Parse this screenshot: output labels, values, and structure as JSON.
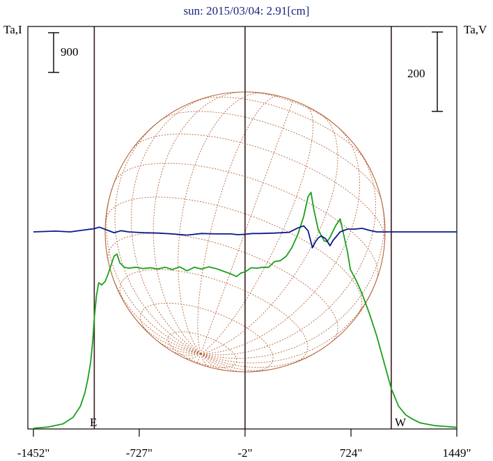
{
  "chart_data": {
    "type": "line",
    "title": "sun: 2015/03/04: 2.91[cm]",
    "left_axis_label": "Ta,I",
    "right_axis_label": "Ta,V",
    "left_scale_label": "900",
    "right_scale_label": "200",
    "limb_labels": {
      "east": "E",
      "west": "W"
    },
    "xlim": [
      -1452,
      1449
    ],
    "x_ticks": [
      {
        "value": -1452,
        "label": "-1452\""
      },
      {
        "value": -727,
        "label": "-727\""
      },
      {
        "value": -2,
        "label": "-2\""
      },
      {
        "value": 724,
        "label": "724\""
      },
      {
        "value": 1449,
        "label": "1449\""
      }
    ],
    "vertical_lines_x": [
      -1035,
      -2,
      1000
    ],
    "colors": {
      "title": "#1a237e",
      "stokes_i": "#1a9f1a",
      "stokes_v": "#0a1a8a",
      "disk": "#b5653a",
      "marker_lines": "#3a1a1a",
      "axes": "#000000"
    },
    "series": [
      {
        "name": "",
        "axis": "left",
        "color": "#1a9f1a",
        "points": [
          [
            -1452,
            0
          ],
          [
            -1350,
            30
          ],
          [
            -1250,
            100
          ],
          [
            -1180,
            250
          ],
          [
            -1130,
            500
          ],
          [
            -1100,
            800
          ],
          [
            -1080,
            1100
          ],
          [
            -1060,
            1500
          ],
          [
            -1045,
            2000
          ],
          [
            -1035,
            2500
          ],
          [
            -1020,
            3000
          ],
          [
            -1005,
            3300
          ],
          [
            -985,
            3250
          ],
          [
            -960,
            3330
          ],
          [
            -940,
            3500
          ],
          [
            -920,
            3700
          ],
          [
            -900,
            3900
          ],
          [
            -880,
            3950
          ],
          [
            -860,
            3750
          ],
          [
            -830,
            3650
          ],
          [
            -800,
            3630
          ],
          [
            -750,
            3650
          ],
          [
            -700,
            3620
          ],
          [
            -650,
            3640
          ],
          [
            -600,
            3610
          ],
          [
            -550,
            3650
          ],
          [
            -500,
            3600
          ],
          [
            -450,
            3660
          ],
          [
            -400,
            3570
          ],
          [
            -350,
            3650
          ],
          [
            -300,
            3610
          ],
          [
            -250,
            3660
          ],
          [
            -200,
            3620
          ],
          [
            -150,
            3560
          ],
          [
            -100,
            3500
          ],
          [
            -60,
            3440
          ],
          [
            -30,
            3520
          ],
          [
            0,
            3550
          ],
          [
            40,
            3640
          ],
          [
            80,
            3630
          ],
          [
            120,
            3650
          ],
          [
            160,
            3650
          ],
          [
            200,
            3780
          ],
          [
            240,
            3800
          ],
          [
            280,
            3900
          ],
          [
            320,
            4100
          ],
          [
            360,
            4400
          ],
          [
            400,
            4800
          ],
          [
            430,
            5250
          ],
          [
            450,
            5350
          ],
          [
            470,
            4950
          ],
          [
            500,
            4500
          ],
          [
            540,
            4250
          ],
          [
            560,
            4230
          ],
          [
            580,
            4330
          ],
          [
            620,
            4600
          ],
          [
            650,
            4750
          ],
          [
            680,
            4300
          ],
          [
            700,
            4000
          ],
          [
            720,
            3600
          ],
          [
            760,
            3350
          ],
          [
            800,
            3050
          ],
          [
            850,
            2600
          ],
          [
            900,
            2100
          ],
          [
            950,
            1500
          ],
          [
            1000,
            900
          ],
          [
            1050,
            500
          ],
          [
            1100,
            300
          ],
          [
            1150,
            200
          ],
          [
            1200,
            120
          ],
          [
            1300,
            60
          ],
          [
            1449,
            20
          ]
        ]
      },
      {
        "name": "",
        "axis": "right",
        "color": "#0a1a8a",
        "points": [
          [
            -1452,
            0
          ],
          [
            -1300,
            2
          ],
          [
            -1200,
            0
          ],
          [
            -1100,
            5
          ],
          [
            -1035,
            8
          ],
          [
            -1000,
            12
          ],
          [
            -950,
            5
          ],
          [
            -900,
            -2
          ],
          [
            -850,
            3
          ],
          [
            -800,
            0
          ],
          [
            -700,
            -2
          ],
          [
            -600,
            -3
          ],
          [
            -500,
            -5
          ],
          [
            -400,
            -8
          ],
          [
            -300,
            -4
          ],
          [
            -200,
            -5
          ],
          [
            -100,
            -5
          ],
          [
            -50,
            -7
          ],
          [
            0,
            -6
          ],
          [
            50,
            -4
          ],
          [
            100,
            -4
          ],
          [
            200,
            -3
          ],
          [
            300,
            -1
          ],
          [
            360,
            10
          ],
          [
            400,
            15
          ],
          [
            430,
            3
          ],
          [
            460,
            -40
          ],
          [
            480,
            -25
          ],
          [
            500,
            -15
          ],
          [
            520,
            -10
          ],
          [
            550,
            -17
          ],
          [
            580,
            -35
          ],
          [
            600,
            -22
          ],
          [
            650,
            0
          ],
          [
            700,
            7
          ],
          [
            750,
            7
          ],
          [
            800,
            9
          ],
          [
            850,
            4
          ],
          [
            900,
            0
          ],
          [
            1000,
            0
          ],
          [
            1449,
            0
          ]
        ]
      }
    ]
  }
}
